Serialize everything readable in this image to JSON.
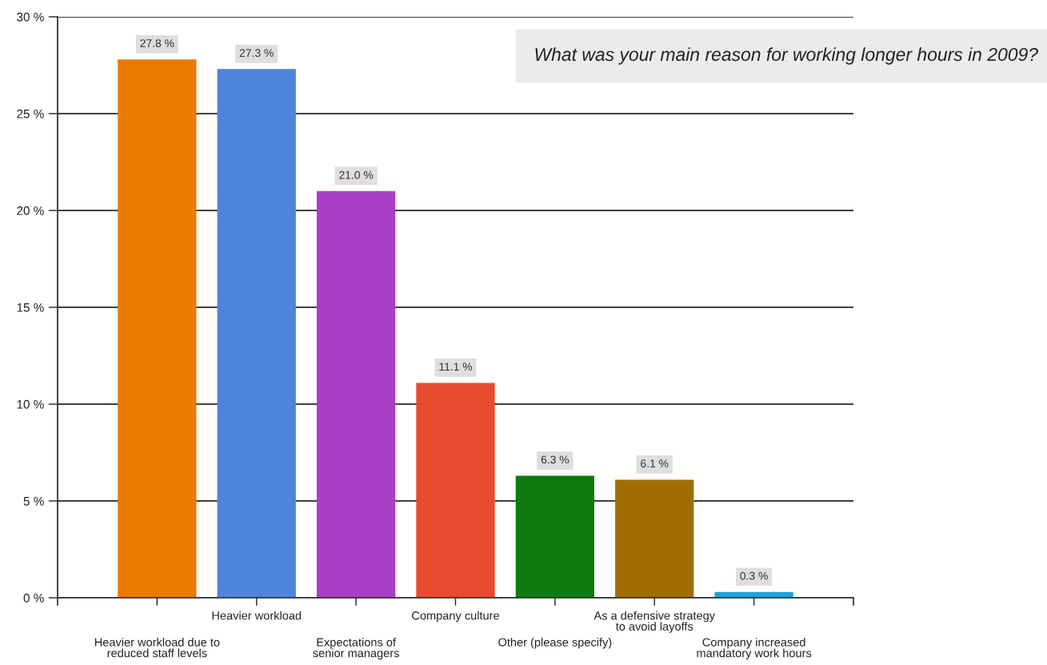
{
  "chart_data": {
    "type": "bar",
    "title": "What was your main reason for working longer hours in 2009?",
    "categories": [
      "Heavier workload due to\nreduced staff levels",
      "Heavier workload",
      "Expectations of\nsenior managers",
      "Company culture",
      "Other (please specify)",
      "As a defensive strategy\nto avoid layoffs",
      "Company increased\nmandatory work hours"
    ],
    "values": [
      27.8,
      27.3,
      21.0,
      11.1,
      6.3,
      6.1,
      0.3
    ],
    "colors": [
      "#ea7a00",
      "#4f84dc",
      "#a83fc6",
      "#e64c2e",
      "#0f7a10",
      "#a06e00",
      "#1aa3dc"
    ],
    "value_labels": [
      "27.8 %",
      "27.3 %",
      "21.0 %",
      "11.1 %",
      "6.3 %",
      "6.1 %",
      "0.3 %"
    ],
    "ylim": [
      0,
      30
    ],
    "yticks": [
      {
        "value": 0,
        "label": "0 %"
      },
      {
        "value": 5,
        "label": "5 %"
      },
      {
        "value": 10,
        "label": "10 %"
      },
      {
        "value": 15,
        "label": "15 %"
      },
      {
        "value": 20,
        "label": "20 %"
      },
      {
        "value": 25,
        "label": "25 %"
      },
      {
        "value": 30,
        "label": "30 %"
      }
    ],
    "grid": "y"
  }
}
